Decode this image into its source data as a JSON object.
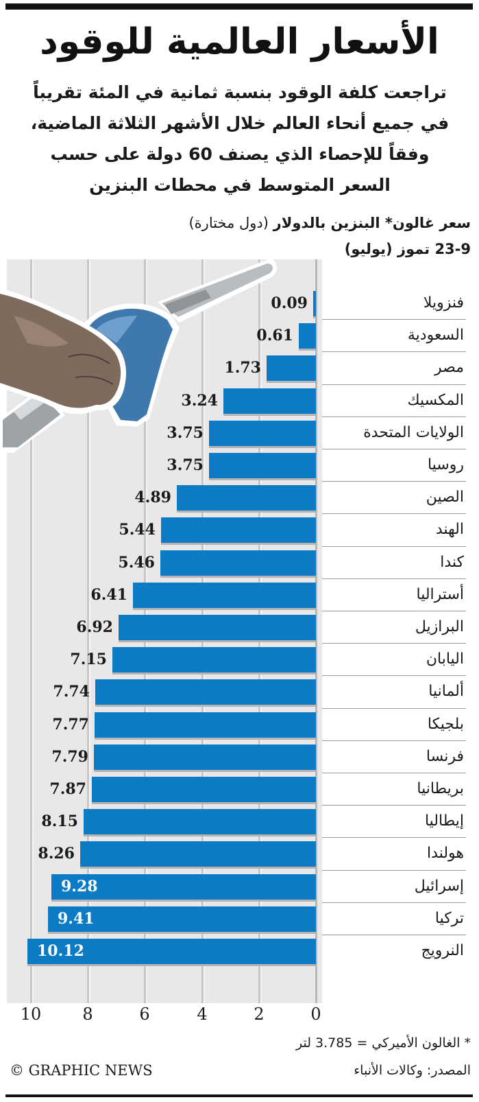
{
  "header": {
    "title": "الأسعار العالمية للوقود",
    "subtitle_lines": [
      "تراجعت كلفة الوقود بنسبة ثمانية في المئة تقريباً",
      "في جميع أنحاء العالم خلال الأشهر الثلاثة الماضية،",
      "وفقاً للإحصاء الذي يصنف 60 دولة على حسب",
      "السعر المتوسط في محطات البنزين"
    ]
  },
  "chart_labels": {
    "unit_bold": "سعر غالون* البنزين بالدولار",
    "unit_normal": " (دول مختارة)",
    "date": "23-9 تموز (يوليو)"
  },
  "colors": {
    "bar": "#0a7bc4",
    "plot_background": "#e9e7e8",
    "gridline": "#c9c6c8",
    "text": "#1a1a1a"
  },
  "chart_data": {
    "type": "bar",
    "orientation": "horizontal",
    "title": "الأسعار العالمية للوقود",
    "subtitle": "سعر غالون* البنزين بالدولار (دول مختارة) 23-9 تموز (يوليو)",
    "xlabel": "",
    "ylabel": "",
    "xlim": [
      0,
      10.5
    ],
    "xticks": [
      0,
      2,
      4,
      6,
      8,
      10
    ],
    "grid": true,
    "axis_direction": "right-to-left",
    "categories": [
      "فنزويلا",
      "السعودية",
      "مصر",
      "المكسيك",
      "الولايات المتحدة",
      "روسيا",
      "الصين",
      "الهند",
      "كندا",
      "أستراليا",
      "البرازيل",
      "اليابان",
      "ألمانيا",
      "بلجيكا",
      "فرنسا",
      "بريطانيا",
      "إيطاليا",
      "هولندا",
      "إسرائيل",
      "تركيا",
      "النرويج"
    ],
    "values": [
      0.09,
      0.61,
      1.73,
      3.24,
      3.75,
      3.75,
      4.89,
      5.44,
      5.46,
      6.41,
      6.92,
      7.15,
      7.74,
      7.77,
      7.79,
      7.87,
      8.15,
      8.26,
      9.28,
      9.41,
      10.12
    ],
    "value_labels": [
      "0.09",
      "0.61",
      "1.73",
      "3.24",
      "3.75",
      "3.75",
      "4.89",
      "5.44",
      "5.46",
      "6.41",
      "6.92",
      "7.15",
      "7.74",
      "7.77",
      "7.79",
      "7.87",
      "8.15",
      "8.26",
      "9.28",
      "9.41",
      "10.12"
    ]
  },
  "axis": {
    "ticks": [
      "10",
      "8",
      "6",
      "4",
      "2",
      "0"
    ]
  },
  "footer": {
    "footnote": "* الغالون الأميركي = 3.785 لتر",
    "source": "المصدر: وكالات الأنباء",
    "credit": "© GRAPHIC NEWS"
  }
}
